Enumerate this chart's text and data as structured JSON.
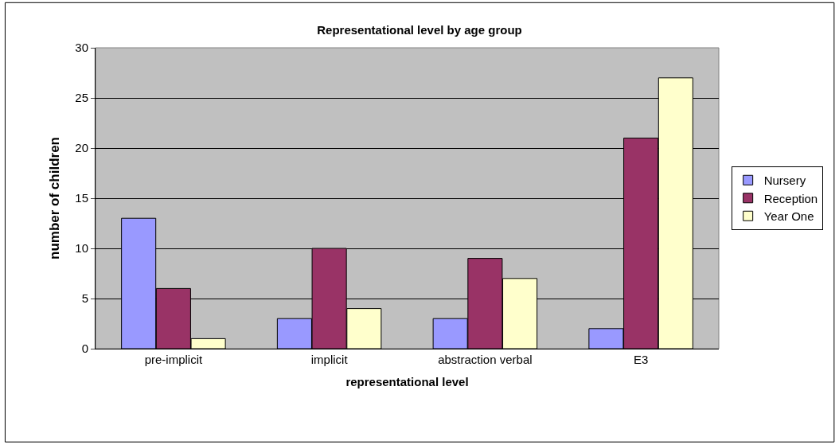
{
  "chart_data": {
    "type": "bar",
    "title": "Representational level by age group",
    "xlabel": "representational level",
    "ylabel": "number of children",
    "categories": [
      "pre-implicit",
      "implicit",
      "abstraction verbal",
      "E3"
    ],
    "series": [
      {
        "name": "Nursery",
        "color": "#9999ff",
        "values": [
          13,
          3,
          3,
          2
        ]
      },
      {
        "name": "Reception",
        "color": "#993366",
        "values": [
          6,
          10,
          9,
          21
        ]
      },
      {
        "name": "Year One",
        "color": "#ffffcc",
        "values": [
          1,
          4,
          7,
          27
        ]
      }
    ],
    "ylim": [
      0,
      30
    ],
    "yticks": [
      0,
      5,
      10,
      15,
      20,
      25,
      30
    ],
    "grid": "y",
    "legend": "right"
  }
}
